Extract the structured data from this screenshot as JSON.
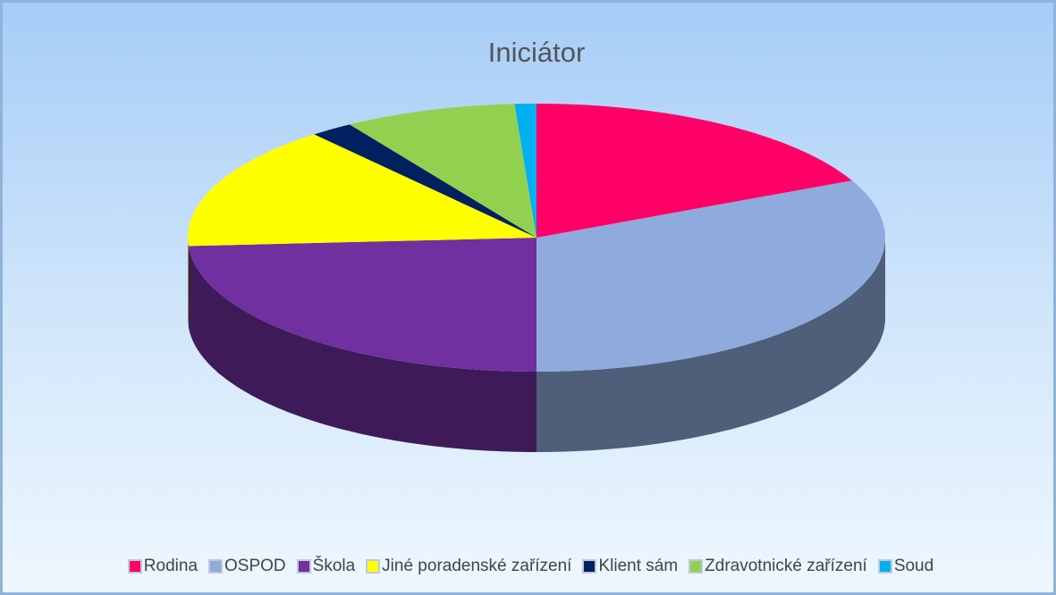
{
  "chart_data": {
    "type": "pie",
    "title": "Iniciátor",
    "categories": [
      "Rodina",
      "OSPOD",
      "Škola",
      "Jiné poradenské zařízení",
      "Klient sám",
      "Zdravotnické zařízení",
      "Soud"
    ],
    "values": [
      18,
      32,
      24,
      15,
      2,
      8,
      1
    ],
    "colors": [
      "#ff0066",
      "#8faadc",
      "#7030a0",
      "#ffff00",
      "#002060",
      "#92d050",
      "#00b0f0"
    ],
    "legend": "bottom"
  }
}
